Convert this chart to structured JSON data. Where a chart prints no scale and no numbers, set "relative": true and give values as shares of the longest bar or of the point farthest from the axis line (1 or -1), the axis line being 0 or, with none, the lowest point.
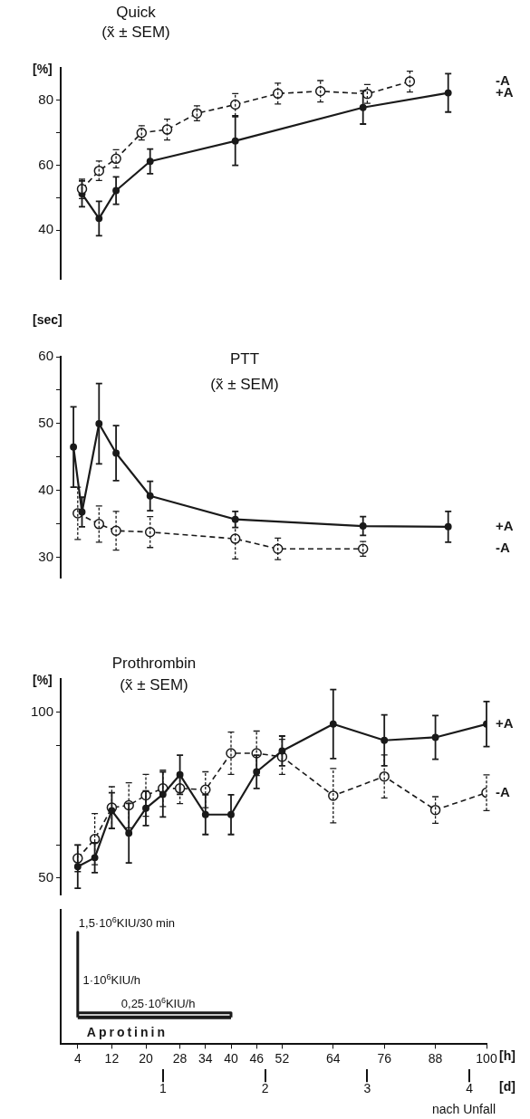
{
  "chart_data": [
    {
      "type": "line",
      "title": "Quick\n(x̃ ± SEM)",
      "ylabel": "[%]",
      "xlim": [
        0,
        100
      ],
      "ylim": [
        25,
        90
      ],
      "yticks": [
        40,
        {
          "value": 50,
          "label": null
        },
        60,
        {
          "value": 70,
          "label": null
        },
        80
      ],
      "tick_labels": "y",
      "marker": "circle",
      "series": [
        {
          "name": "-A",
          "color": "#1a1a1a",
          "line_style": "dashed",
          "x": [
            5,
            9,
            13,
            19,
            25,
            32,
            41,
            51,
            61,
            72,
            82
          ],
          "values": [
            52.7,
            58.3,
            62,
            70,
            71,
            76,
            78.7,
            82.1,
            82.8,
            82,
            85.8
          ],
          "errors": [
            3,
            3,
            2.8,
            2.2,
            3.2,
            2.3,
            3.4,
            3.2,
            3.3,
            2.9,
            3.2
          ]
        },
        {
          "name": "+A",
          "color": "#1a1a1a",
          "line_style": "solid",
          "x": [
            5,
            9,
            13,
            21,
            41,
            71,
            91
          ],
          "values": [
            51.2,
            43.6,
            52.2,
            61.2,
            67.5,
            77.8,
            82.3
          ],
          "errors": [
            4,
            5.3,
            4.2,
            3.8,
            7.5,
            5.1,
            5.9
          ]
        }
      ]
    },
    {
      "type": "line",
      "title": "PTT\n(x̃ ± SEM)",
      "ylabel": "[sec]",
      "xlim": [
        0,
        100
      ],
      "ylim": [
        27,
        60
      ],
      "yticks": [
        30,
        {
          "value": 35,
          "label": null
        },
        40,
        {
          "value": 45,
          "label": null
        },
        50,
        {
          "value": 55,
          "label": null
        },
        60
      ],
      "tick_labels": "y",
      "marker": "circle",
      "series": [
        {
          "name": "+A",
          "color": "#1a1a1a",
          "line_style": "solid",
          "x": [
            3,
            5,
            9,
            13,
            21,
            41,
            71,
            91
          ],
          "values": [
            46.5,
            36.8,
            50,
            45.6,
            39.2,
            35.7,
            34.7,
            34.6
          ],
          "errors": [
            6,
            2.2,
            6,
            4.1,
            2.2,
            1.2,
            1.4,
            2.3
          ]
        },
        {
          "name": "-A",
          "color": "#1a1a1a",
          "line_style": "dashed",
          "x": [
            4,
            9,
            13,
            21,
            41,
            51,
            71
          ],
          "values": [
            36.6,
            35,
            34,
            33.8,
            32.8,
            31.3,
            31.3
          ],
          "errors": [
            3.9,
            2.7,
            2.9,
            2.3,
            3,
            1.6,
            1.1
          ]
        }
      ]
    },
    {
      "type": "line",
      "title": "Prothrombin\n(x̃ ± SEM)",
      "ylabel": "[%]",
      "xlim": [
        0,
        100
      ],
      "ylim": [
        45,
        110
      ],
      "yticks": [
        50,
        {
          "value": 60,
          "label": null
        },
        {
          "value": 90,
          "label": null
        },
        100
      ],
      "tick_labels": "y",
      "marker": "circle",
      "series": [
        {
          "name": "+A",
          "color": "#1a1a1a",
          "line_style": "solid",
          "x": [
            4,
            8,
            12,
            16,
            20,
            24,
            28,
            34,
            40,
            46,
            52,
            64,
            76,
            88,
            100
          ],
          "values": [
            53.4,
            56.1,
            70.3,
            63.5,
            71,
            75.2,
            81.1,
            69.1,
            69.1,
            82,
            88.3,
            96.4,
            91.5,
            92.4,
            96.4
          ],
          "errors": [
            6.5,
            4.5,
            5.4,
            9,
            5.2,
            6.8,
            5.9,
            6,
            6,
            5,
            4.5,
            10.4,
            7.7,
            6.6,
            6.8
          ]
        },
        {
          "name": "-A",
          "color": "#1a1a1a",
          "line_style": "dashed",
          "x": [
            4,
            8,
            12,
            16,
            20,
            24,
            28,
            34,
            40,
            46,
            52,
            64,
            76,
            88,
            100
          ],
          "values": [
            55.9,
            61.7,
            71.2,
            71.9,
            74.9,
            77,
            77,
            76.6,
            87.6,
            87.6,
            86.5,
            74.8,
            80.6,
            70.5,
            75.7
          ],
          "errors": [
            4,
            7.7,
            6.3,
            6.8,
            6.3,
            5.5,
            4.6,
            5.4,
            6.4,
            6.7,
            5.3,
            8.2,
            6.5,
            4,
            5.4
          ]
        }
      ]
    },
    {
      "type": "step",
      "relative": true,
      "xlabel": "[h]",
      "x2label": "[d]",
      "xlim": [
        0,
        100
      ],
      "xticks": [
        4,
        12,
        20,
        28,
        34,
        40,
        46,
        52,
        64,
        76,
        88,
        100
      ],
      "x2lim": [
        0,
        4.16667
      ],
      "x2ticks": [
        1,
        2,
        3,
        4
      ],
      "tick_labels": "x",
      "series": [
        {
          "color": "#1a1a1a",
          "x": [
            4,
            4,
            4,
            10,
            40,
            40
          ],
          "values": [
            0.24,
            1,
            0.49,
            0.28,
            0.28,
            0.24
          ]
        },
        {
          "name": "Aprotinin",
          "color": "#1a1a1a",
          "x": [
            4,
            40
          ],
          "values": [
            0.24,
            0.24
          ]
        }
      ],
      "annotations": [
        {
          "text": "1,5·10$^{6}$KIU/30 min",
          "x": 4,
          "y": 1
        },
        {
          "text": "1·10$^{6}$KIU/h",
          "x": 5,
          "y": 0.49
        },
        {
          "text": "0,25·10$^{6}$KIU/h",
          "x": 14,
          "y": 0.28
        },
        "nach Unfall"
      ]
    }
  ]
}
